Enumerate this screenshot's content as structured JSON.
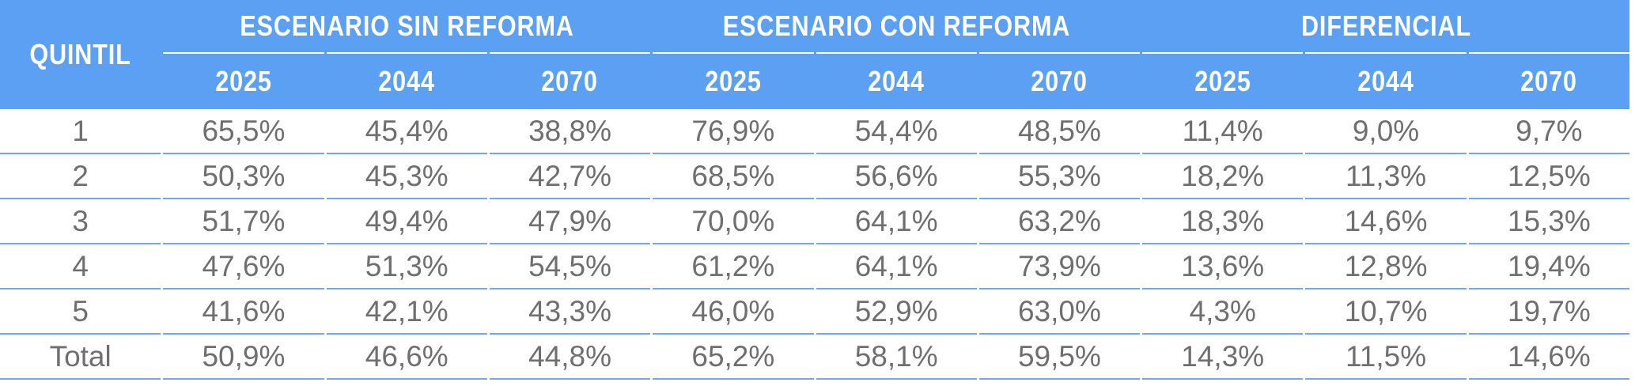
{
  "colors": {
    "header_bg": "#5ba0f2",
    "header_text": "#ffffff",
    "divider": "#6fa9f1",
    "data_text": "#6f6f6f",
    "body_bg": "#ffffff"
  },
  "chart_data": {
    "type": "table",
    "title": "",
    "row_header_label": "QUINTIL",
    "column_groups": [
      {
        "label": "ESCENARIO SIN REFORMA",
        "columns": [
          "2025",
          "2044",
          "2070"
        ]
      },
      {
        "label": "ESCENARIO CON REFORMA",
        "columns": [
          "2025",
          "2044",
          "2070"
        ]
      },
      {
        "label": "DIFERENCIAL",
        "columns": [
          "2025",
          "2044",
          "2070"
        ]
      }
    ],
    "rows": [
      {
        "label": "1",
        "values": [
          "65,5%",
          "45,4%",
          "38,8%",
          "76,9%",
          "54,4%",
          "48,5%",
          "11,4%",
          "9,0%",
          "9,7%"
        ]
      },
      {
        "label": "2",
        "values": [
          "50,3%",
          "45,3%",
          "42,7%",
          "68,5%",
          "56,6%",
          "55,3%",
          "18,2%",
          "11,3%",
          "12,5%"
        ]
      },
      {
        "label": "3",
        "values": [
          "51,7%",
          "49,4%",
          "47,9%",
          "70,0%",
          "64,1%",
          "63,2%",
          "18,3%",
          "14,6%",
          "15,3%"
        ]
      },
      {
        "label": "4",
        "values": [
          "47,6%",
          "51,3%",
          "54,5%",
          "61,2%",
          "64,1%",
          "73,9%",
          "13,6%",
          "12,8%",
          "19,4%"
        ]
      },
      {
        "label": "5",
        "values": [
          "41,6%",
          "42,1%",
          "43,3%",
          "46,0%",
          "52,9%",
          "63,0%",
          "4,3%",
          "10,7%",
          "19,7%"
        ]
      },
      {
        "label": "Total",
        "values": [
          "50,9%",
          "46,6%",
          "44,8%",
          "65,2%",
          "58,1%",
          "59,5%",
          "14,3%",
          "11,5%",
          "14,6%"
        ]
      }
    ]
  }
}
